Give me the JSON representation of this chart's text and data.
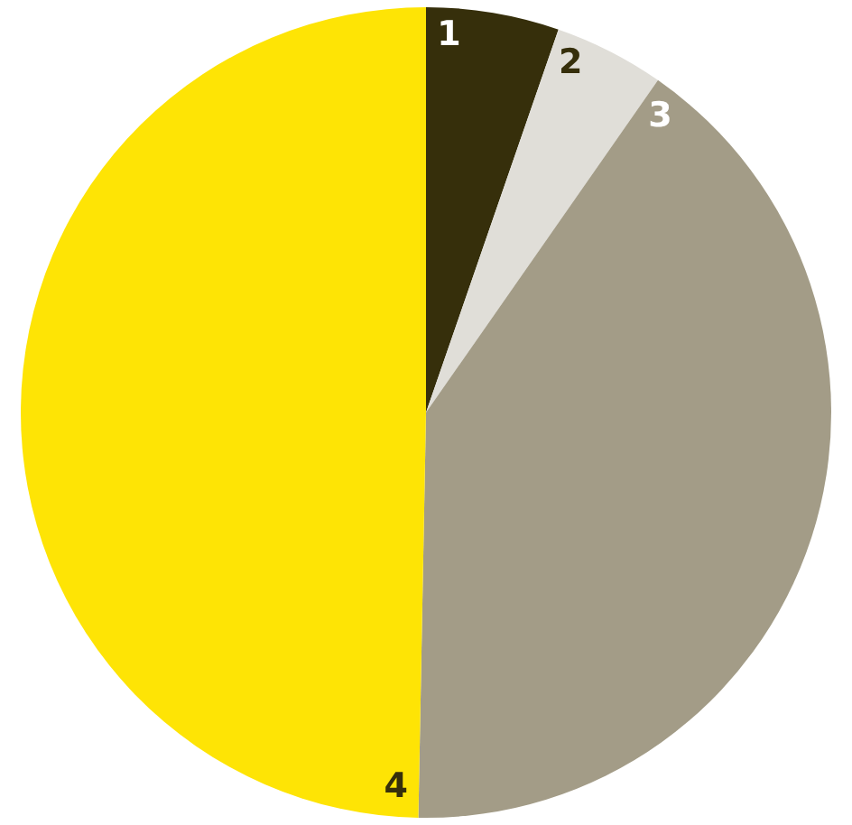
{
  "chart_data": {
    "type": "pie",
    "categories": [
      "1",
      "2",
      "3",
      "4"
    ],
    "values": [
      5.3,
      4.4,
      40.6,
      49.7
    ],
    "colors": [
      "#362f0b",
      "#e0ded8",
      "#a39c87",
      "#fee405"
    ],
    "legend": false
  }
}
